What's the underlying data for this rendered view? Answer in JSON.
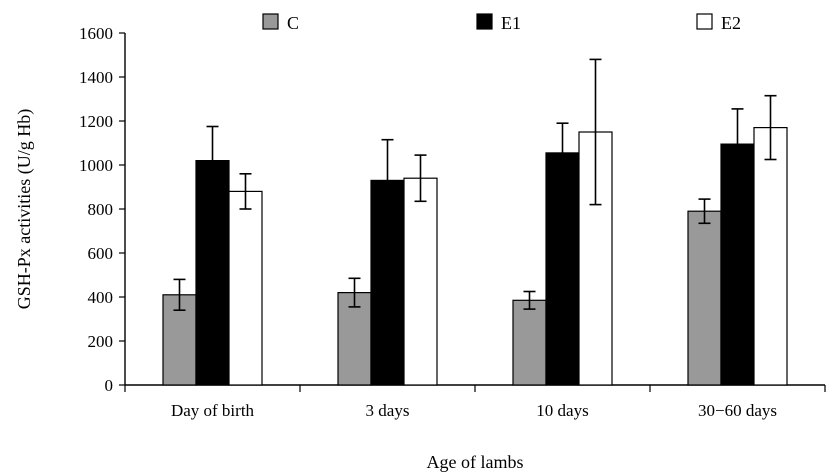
{
  "chart_data": {
    "type": "bar",
    "title": "",
    "xlabel": "Age of lambs",
    "ylabel": "GSH-Px activities (U/g Hb)",
    "ylim": [
      0,
      1600
    ],
    "yticks": [
      0,
      200,
      400,
      600,
      800,
      1000,
      1200,
      1400,
      1600
    ],
    "categories": [
      "Day of birth",
      "3 days",
      "10 days",
      "30−60 days"
    ],
    "legend_position": "top",
    "grid": false,
    "series": [
      {
        "name": "C",
        "color": "#999999",
        "values": [
          410,
          420,
          385,
          790
        ],
        "error": [
          70,
          65,
          40,
          55
        ]
      },
      {
        "name": "E1",
        "color": "#000000",
        "values": [
          1020,
          930,
          1055,
          1095
        ],
        "error": [
          155,
          185,
          135,
          160
        ]
      },
      {
        "name": "E2",
        "color": "#ffffff",
        "values": [
          880,
          940,
          1150,
          1170
        ],
        "error": [
          80,
          105,
          330,
          145
        ]
      }
    ]
  }
}
